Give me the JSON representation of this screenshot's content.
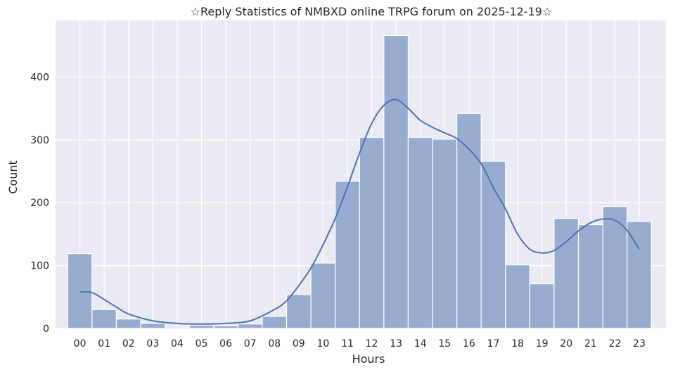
{
  "chart_data": {
    "type": "bar",
    "subtype": "histogram-with-kde",
    "title": "☆Reply Statistics of NMBXD online TRPG forum on 2025-12-19☆",
    "xlabel": "Hours",
    "ylabel": "Count",
    "categories": [
      "00",
      "01",
      "02",
      "03",
      "04",
      "05",
      "06",
      "07",
      "08",
      "09",
      "10",
      "11",
      "12",
      "13",
      "14",
      "15",
      "16",
      "17",
      "18",
      "19",
      "20",
      "21",
      "22",
      "23"
    ],
    "values": [
      119,
      30,
      15,
      8,
      2,
      5,
      4,
      7,
      19,
      54,
      104,
      234,
      304,
      466,
      304,
      301,
      342,
      266,
      101,
      71,
      175,
      165,
      194,
      170
    ],
    "kde": {
      "x": [
        0,
        0.5,
        1,
        1.5,
        2,
        3,
        4,
        5,
        6,
        7,
        8,
        8.5,
        9,
        9.5,
        10,
        10.5,
        11,
        11.5,
        12,
        12.5,
        13,
        13.5,
        14,
        14.5,
        15,
        15.5,
        16,
        16.5,
        17,
        17.5,
        18,
        18.5,
        19,
        19.5,
        20,
        20.5,
        21,
        21.5,
        22,
        22.5,
        23
      ],
      "y": [
        58,
        57,
        46,
        34,
        23,
        12,
        8,
        7,
        8,
        12,
        30,
        44,
        68,
        96,
        133,
        175,
        225,
        279,
        326,
        355,
        364,
        350,
        331,
        320,
        311,
        302,
        285,
        262,
        224,
        190,
        150,
        126,
        120,
        124,
        138,
        155,
        168,
        174,
        172,
        156,
        126
      ]
    },
    "yticks": [
      0,
      100,
      200,
      300,
      400
    ],
    "ylim": [
      0,
      490
    ],
    "xlim": [
      -1,
      24.1
    ],
    "grid": true,
    "colors": {
      "bar_fill": "#98acd0",
      "bar_edge": "#ffffff",
      "kde_line": "#4c72b0",
      "plot_background": "#eaeaf2",
      "gridline": "#ffffff"
    }
  }
}
